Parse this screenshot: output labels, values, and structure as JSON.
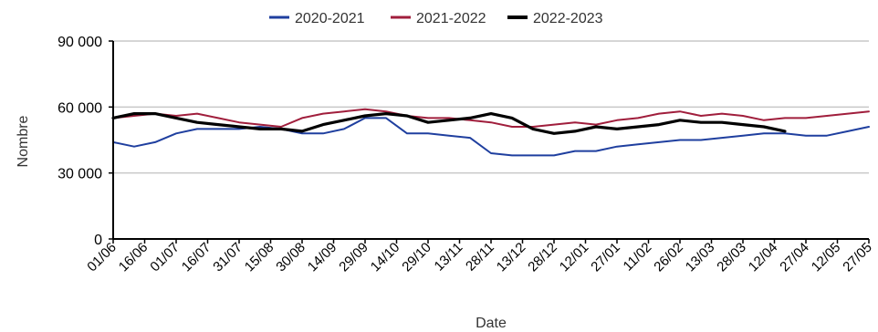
{
  "chart_data": {
    "type": "line",
    "xlabel": "Date",
    "ylabel": "Nombre",
    "ylim": [
      0,
      90000
    ],
    "yticks": [
      0,
      30000,
      60000,
      90000
    ],
    "ytick_labels": [
      "0",
      "30 000",
      "60 000",
      "90 000"
    ],
    "gridlines": "horizontal",
    "legend_position": "top-center",
    "x_range_days": [
      0,
      360
    ],
    "x_tick_labels": [
      "01/06",
      "16/06",
      "01/07",
      "16/07",
      "31/07",
      "15/08",
      "30/08",
      "14/09",
      "29/09",
      "14/10",
      "29/10",
      "13/11",
      "28/11",
      "13/12",
      "28/12",
      "12/01",
      "27/01",
      "11/02",
      "26/02",
      "13/03",
      "28/03",
      "12/04",
      "27/04",
      "12/05",
      "27/05"
    ],
    "series": [
      {
        "name": "2020-2021",
        "color": "#1f3f9f",
        "x": [
          0,
          10,
          20,
          30,
          40,
          50,
          60,
          70,
          80,
          90,
          100,
          110,
          120,
          130,
          140,
          150,
          160,
          170,
          180,
          190,
          200,
          210,
          220,
          230,
          240,
          250,
          260,
          270,
          280,
          290,
          300,
          310,
          320,
          330,
          340,
          350,
          360
        ],
        "y": [
          44000,
          42000,
          44000,
          48000,
          50000,
          50000,
          50000,
          51000,
          50000,
          48000,
          48000,
          50000,
          55000,
          55000,
          48000,
          48000,
          47000,
          46000,
          39000,
          38000,
          38000,
          38000,
          40000,
          40000,
          42000,
          43000,
          44000,
          45000,
          45000,
          46000,
          47000,
          48000,
          48000,
          47000,
          47000,
          49000,
          51000
        ]
      },
      {
        "name": "2021-2022",
        "color": "#a01e3c",
        "x": [
          0,
          10,
          20,
          30,
          40,
          50,
          60,
          70,
          80,
          90,
          100,
          110,
          120,
          130,
          140,
          150,
          160,
          170,
          180,
          190,
          200,
          210,
          220,
          230,
          240,
          250,
          260,
          270,
          280,
          290,
          300,
          310,
          320,
          330,
          340,
          350,
          360
        ],
        "y": [
          55000,
          56000,
          57000,
          56000,
          57000,
          55000,
          53000,
          52000,
          51000,
          55000,
          57000,
          58000,
          59000,
          58000,
          56000,
          55000,
          55000,
          54000,
          53000,
          51000,
          51000,
          52000,
          53000,
          52000,
          54000,
          55000,
          57000,
          58000,
          56000,
          57000,
          56000,
          54000,
          55000,
          55000,
          56000,
          57000,
          58000
        ]
      },
      {
        "name": "2022-2023",
        "color": "#000000",
        "x": [
          0,
          10,
          20,
          30,
          40,
          50,
          60,
          70,
          80,
          90,
          100,
          110,
          120,
          130,
          140,
          150,
          160,
          170,
          180,
          190,
          200,
          210,
          220,
          230,
          240,
          250,
          260,
          270,
          280,
          290,
          300,
          310,
          320
        ],
        "y": [
          55000,
          57000,
          57000,
          55000,
          53000,
          52000,
          51000,
          50000,
          50000,
          49000,
          52000,
          54000,
          56000,
          57000,
          56000,
          53000,
          54000,
          55000,
          57000,
          55000,
          50000,
          48000,
          49000,
          51000,
          50000,
          51000,
          52000,
          54000,
          53000,
          53000,
          52000,
          51000,
          49000
        ]
      }
    ]
  }
}
